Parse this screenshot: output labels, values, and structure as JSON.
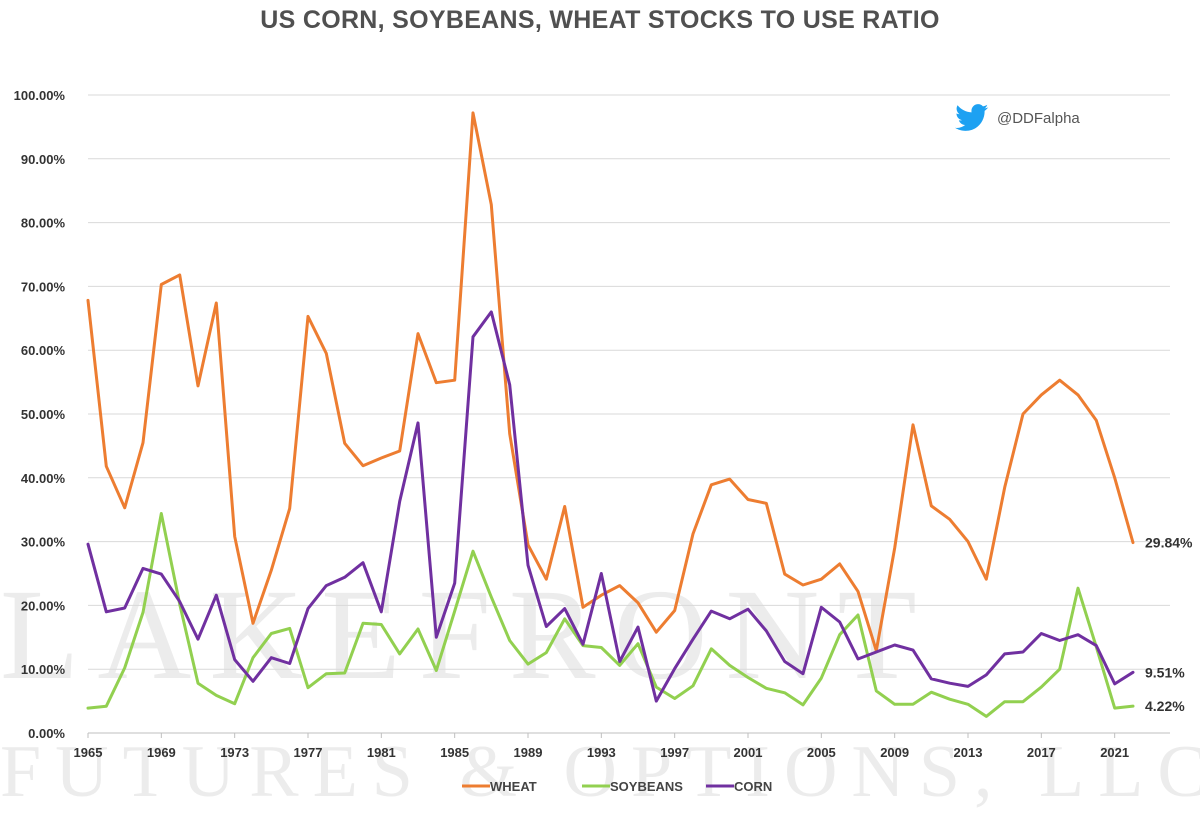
{
  "watermark": {
    "line1": "LAKEFRONT",
    "line2": "FUTURES & OPTIONS, LLC"
  },
  "twitter": {
    "handle": "@DDFalpha",
    "icon": "twitter-bird-icon",
    "color": "#1da1f2"
  },
  "chart_data": {
    "type": "line",
    "title": "US CORN, SOYBEANS, WHEAT STOCKS TO USE RATIO",
    "xlabel": "",
    "ylabel": "",
    "x": [
      1965,
      1966,
      1967,
      1968,
      1969,
      1970,
      1971,
      1972,
      1973,
      1974,
      1975,
      1976,
      1977,
      1978,
      1979,
      1980,
      1981,
      1982,
      1983,
      1984,
      1985,
      1986,
      1987,
      1988,
      1989,
      1990,
      1991,
      1992,
      1993,
      1994,
      1995,
      1996,
      1997,
      1998,
      1999,
      2000,
      2001,
      2002,
      2003,
      2004,
      2005,
      2006,
      2007,
      2008,
      2009,
      2010,
      2011,
      2012,
      2013,
      2014,
      2015,
      2016,
      2017,
      2018,
      2019,
      2020,
      2021,
      2022
    ],
    "xlim": [
      1965,
      2022
    ],
    "x_ticks": [
      1965,
      1969,
      1973,
      1977,
      1981,
      1985,
      1989,
      1993,
      1997,
      2001,
      2005,
      2009,
      2013,
      2017,
      2021
    ],
    "x_tick_labels": [
      "1965",
      "1969",
      "1973",
      "1977",
      "1981",
      "1985",
      "1989",
      "1993",
      "1997",
      "2001",
      "2005",
      "2009",
      "2013",
      "2017",
      "2021"
    ],
    "ylim": [
      0,
      100
    ],
    "y_ticks": [
      0,
      10,
      20,
      30,
      40,
      50,
      60,
      70,
      80,
      90,
      100
    ],
    "y_tick_labels": [
      "0.00%",
      "10.00%",
      "20.00%",
      "30.00%",
      "40.00%",
      "50.00%",
      "60.00%",
      "70.00%",
      "80.00%",
      "90.00%",
      "100.00%"
    ],
    "grid": "horizontal",
    "legend_position": "bottom",
    "series": [
      {
        "name": "WHEAT",
        "color": "#ed7d31",
        "values": [
          67.8,
          41.8,
          35.3,
          45.5,
          70.3,
          71.8,
          54.4,
          67.4,
          30.8,
          17.2,
          25.5,
          35.2,
          65.3,
          59.5,
          45.4,
          41.9,
          43.1,
          44.2,
          62.6,
          54.9,
          55.3,
          97.2,
          82.8,
          46.9,
          29.5,
          24.1,
          35.5,
          19.7,
          21.6,
          23.1,
          20.4,
          15.8,
          19.2,
          31.2,
          38.9,
          39.8,
          36.6,
          36.0,
          24.9,
          23.2,
          24.1,
          26.5,
          22.2,
          12.9,
          29.0,
          48.3,
          35.6,
          33.5,
          30.0,
          24.1,
          38.5,
          50.0,
          53.0,
          55.3,
          53.0,
          49.0,
          40.0,
          29.84
        ],
        "end_label": "29.84%"
      },
      {
        "name": "SOYBEANS",
        "color": "#92d050",
        "values": [
          3.9,
          4.2,
          10.2,
          18.9,
          34.4,
          20.2,
          7.8,
          5.9,
          4.6,
          11.8,
          15.6,
          16.4,
          7.1,
          9.3,
          9.4,
          17.2,
          17.0,
          12.4,
          16.3,
          9.8,
          19.1,
          28.5,
          21.3,
          14.5,
          10.8,
          12.6,
          17.9,
          13.7,
          13.4,
          10.6,
          14.0,
          7.2,
          5.4,
          7.4,
          13.2,
          10.6,
          8.7,
          7.0,
          6.3,
          4.4,
          8.6,
          15.4,
          18.5,
          6.6,
          4.5,
          4.5,
          6.4,
          5.3,
          4.5,
          2.6,
          4.9,
          4.9,
          7.2,
          10.0,
          22.7,
          13.5,
          3.9,
          4.22
        ],
        "end_label": "4.22%"
      },
      {
        "name": "CORN",
        "color": "#7030a0",
        "values": [
          29.6,
          19.0,
          19.6,
          25.8,
          24.9,
          20.6,
          14.7,
          21.6,
          11.5,
          8.1,
          11.8,
          10.9,
          19.5,
          23.1,
          24.4,
          26.7,
          19.0,
          36.3,
          48.6,
          15.0,
          23.5,
          62.1,
          66.0,
          54.6,
          26.3,
          16.7,
          19.5,
          13.9,
          25.0,
          11.2,
          16.6,
          5.0,
          10.1,
          14.7,
          19.1,
          17.9,
          19.4,
          16.0,
          11.2,
          9.3,
          19.7,
          17.4,
          11.6,
          12.7,
          13.8,
          13.0,
          8.5,
          7.8,
          7.3,
          9.1,
          12.4,
          12.7,
          15.6,
          14.5,
          15.4,
          13.7,
          7.7,
          9.51
        ],
        "end_label": "9.51%"
      }
    ]
  }
}
